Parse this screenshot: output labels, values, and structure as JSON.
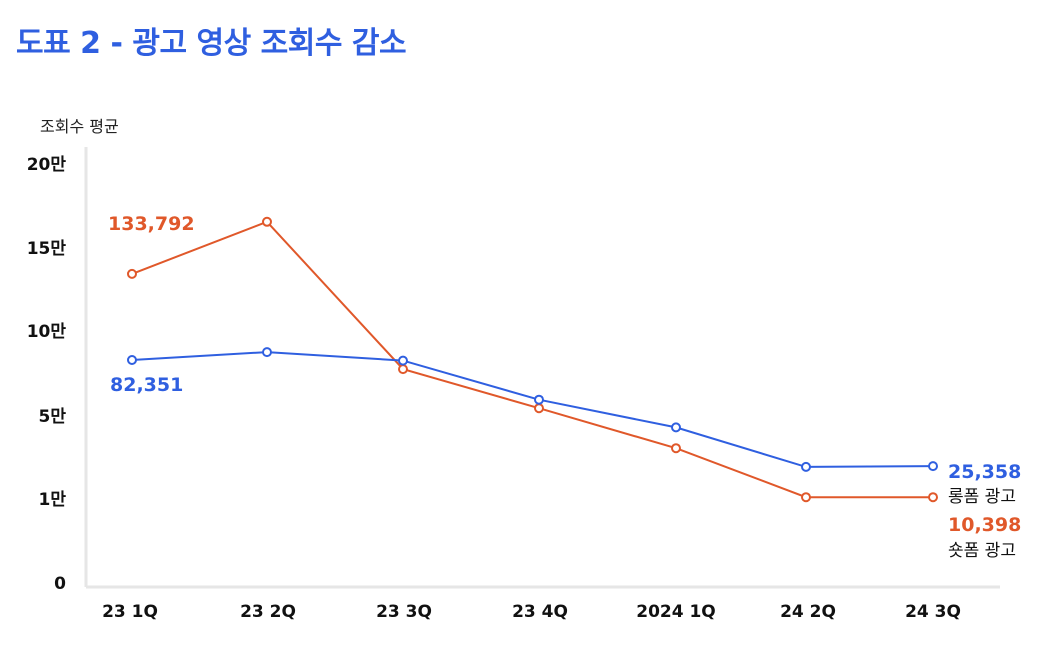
{
  "title": "도표 2 - 광고 영상 조회수 감소",
  "chart_data": {
    "type": "line",
    "title": "도표 2 - 광고 영상 조회수 감소",
    "ylabel": "조회수 평균",
    "categories": [
      "23 1Q",
      "23 2Q",
      "23 3Q",
      "23 4Q",
      "2024 1Q",
      "24 2Q",
      "24 3Q"
    ],
    "y_ticks": [
      "0",
      "1만",
      "5만",
      "10만",
      "15만",
      "20만"
    ],
    "ylim": [
      0,
      200000
    ],
    "grid": false,
    "series": [
      {
        "name": "롱폼 광고",
        "color": "#2f5fe0",
        "values": [
          82351,
          87000,
          82000,
          59000,
          44000,
          25000,
          25358
        ],
        "labels": {
          "first": "82,351",
          "last": "25,358"
        }
      },
      {
        "name": "숏폼 광고",
        "color": "#e0582a",
        "values": [
          133792,
          165000,
          77000,
          54000,
          34000,
          10398,
          10398
        ],
        "labels": {
          "first": "133,792",
          "last": "10,398"
        }
      }
    ]
  }
}
